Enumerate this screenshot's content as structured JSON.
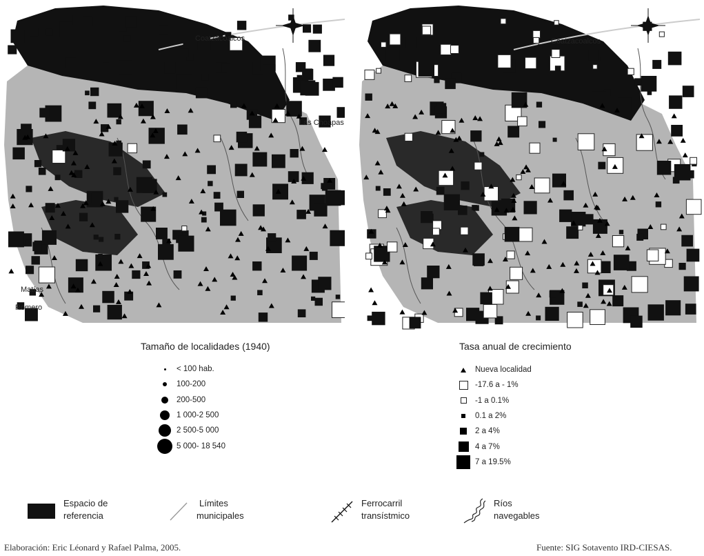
{
  "left_map": {
    "labels": {
      "coatzacoalcos": "Coatzacoalcos",
      "las_choapas": "Las Choapas",
      "matias": "Matías",
      "romero": "Romero"
    }
  },
  "right_map": {
    "labels": {
      "coatzacoalcos": "Coatzacoalcos"
    }
  },
  "legend_left": {
    "title": "Tamaño de localidades (1940)",
    "items": [
      "< 100 hab.",
      "100-200",
      "200-500",
      "1 000-2 500",
      "2 500-5 000",
      "5 000- 18 540"
    ]
  },
  "legend_right": {
    "title": "Tasa anual de crecimiento",
    "items": [
      "Nueva localidad",
      "-17.6 a - 1%",
      "-1 a 0.1%",
      "0.1 a 2%",
      "2 a 4%",
      "4 a 7%",
      "7 a 19.5%"
    ]
  },
  "bottom_legend": {
    "espacio": [
      "Espacio de",
      "referencia"
    ],
    "limites": [
      "Límites",
      "municipales"
    ],
    "ferrocarril": [
      "Ferrocarril",
      "transístmico"
    ],
    "rios": [
      "Ríos",
      "navegables"
    ]
  },
  "credits": {
    "left": "Elaboración: Eric Léonard y Rafael Palma, 2005.",
    "right": "Fuente: SIG Sotavento IRD-CIESAS."
  },
  "colors": {
    "land": "#b5b5b5",
    "black_area": "#111111",
    "marks": "#000000"
  }
}
